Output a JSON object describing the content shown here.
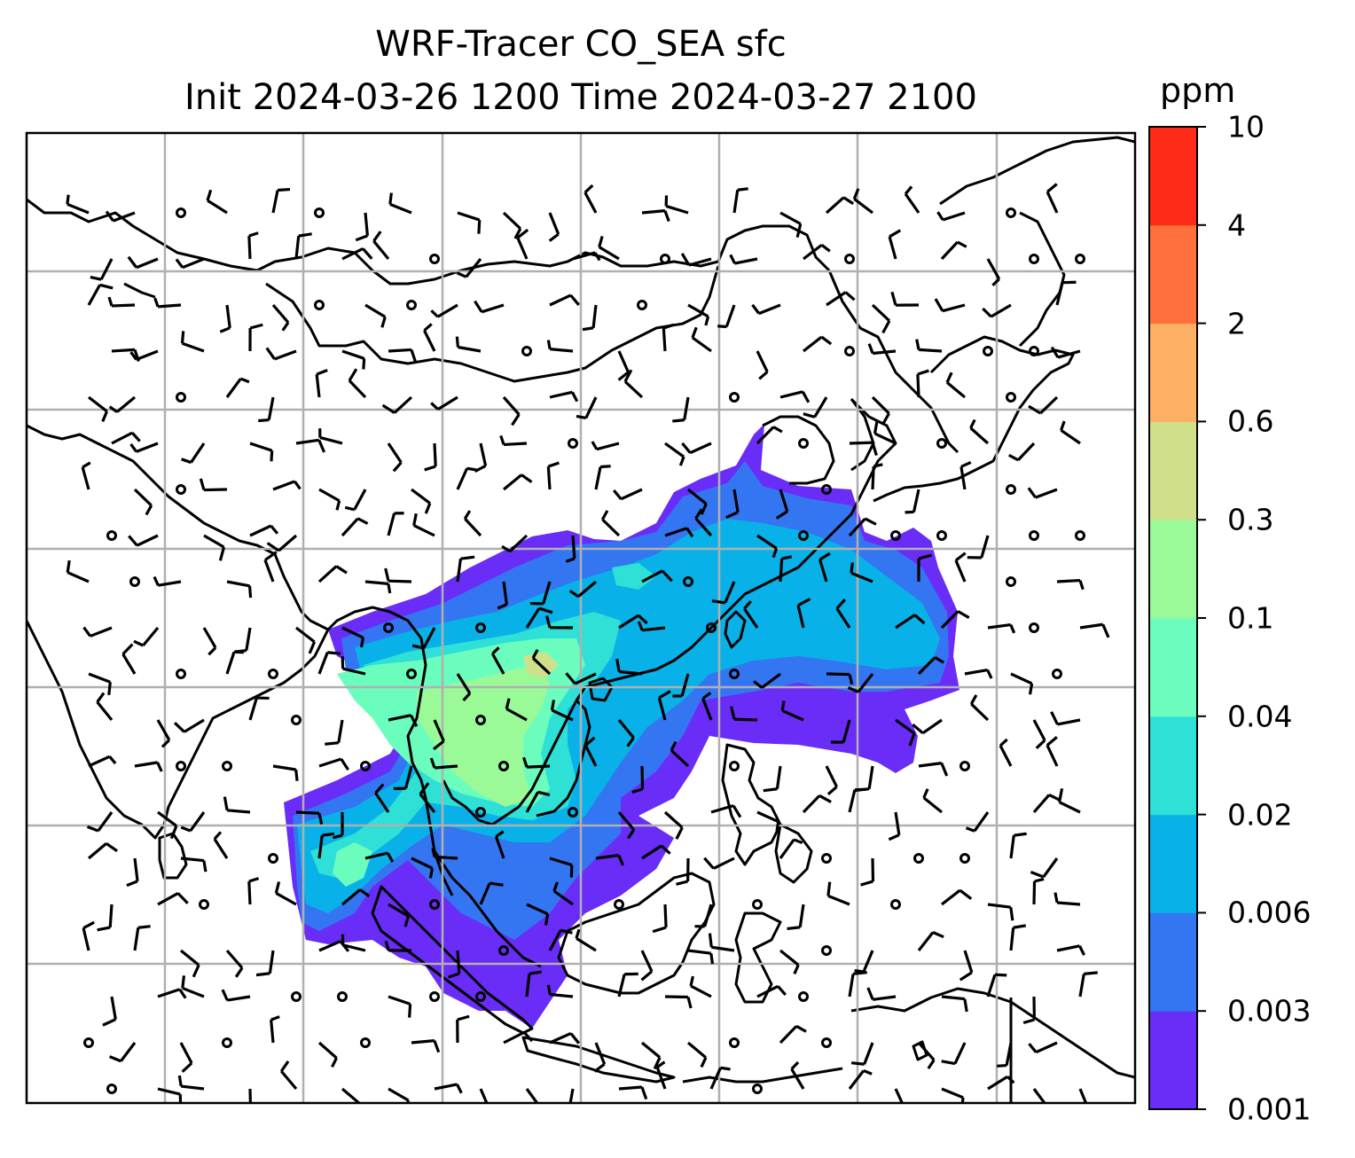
{
  "title": {
    "line1": "WRF-Tracer CO_SEA sfc",
    "line2": "Init 2024-03-26 1200 Time 2024-03-27 2100"
  },
  "colorbar": {
    "units": "ppm",
    "levels": [
      "0.001",
      "0.003",
      "0.006",
      "0.02",
      "0.04",
      "0.1",
      "0.3",
      "0.6",
      "2",
      "4",
      "10"
    ],
    "colors": [
      "#6a2cf7",
      "#3475f2",
      "#08b2e8",
      "#2ee0d5",
      "#6bfdbe",
      "#9afa98",
      "#d0e08a",
      "#fdb063",
      "#ff703c",
      "#ff2a17"
    ]
  },
  "map": {
    "plume_colors": {
      "lowest": "#6a2cf7",
      "low": "#3475f2",
      "mid": "#08b2e8",
      "midhigh": "#2ee0d5",
      "high": "#6bfdbe",
      "higher": "#9afa98",
      "peak": "#d0e08a"
    },
    "gridline_color": "#b0b0b0",
    "coastline_color": "#000000"
  }
}
